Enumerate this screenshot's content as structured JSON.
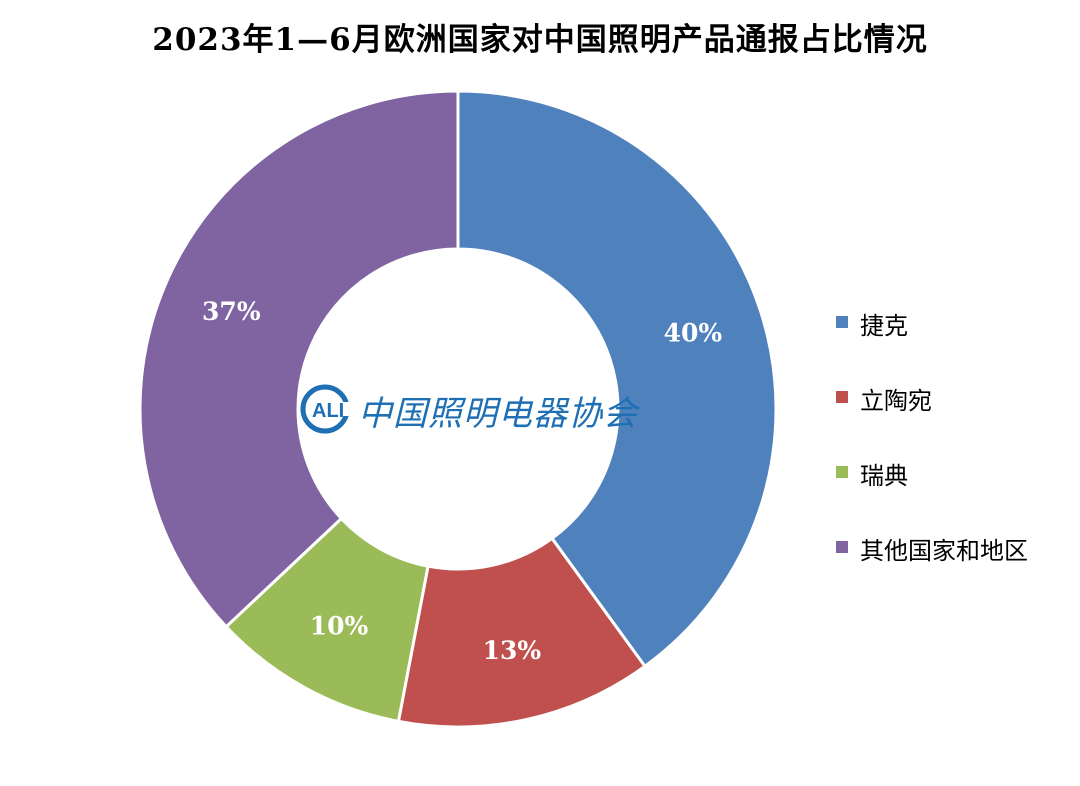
{
  "chart_data": {
    "type": "pie",
    "title": "2023年1—6月欧洲国家对中国照明产品通报占比情况",
    "categories": [
      "捷克",
      "立陶宛",
      "瑞典",
      "其他国家和地区"
    ],
    "values": [
      40,
      13,
      10,
      37
    ],
    "data_labels": [
      "40%",
      "13%",
      "10%",
      "37%"
    ],
    "colors": [
      "#4f81bd",
      "#c0504d",
      "#9bbb59",
      "#8064a2"
    ],
    "donut": true,
    "legend": "right"
  },
  "logo": {
    "emblem_text": "CALI",
    "text": "中国照明电器协会"
  }
}
